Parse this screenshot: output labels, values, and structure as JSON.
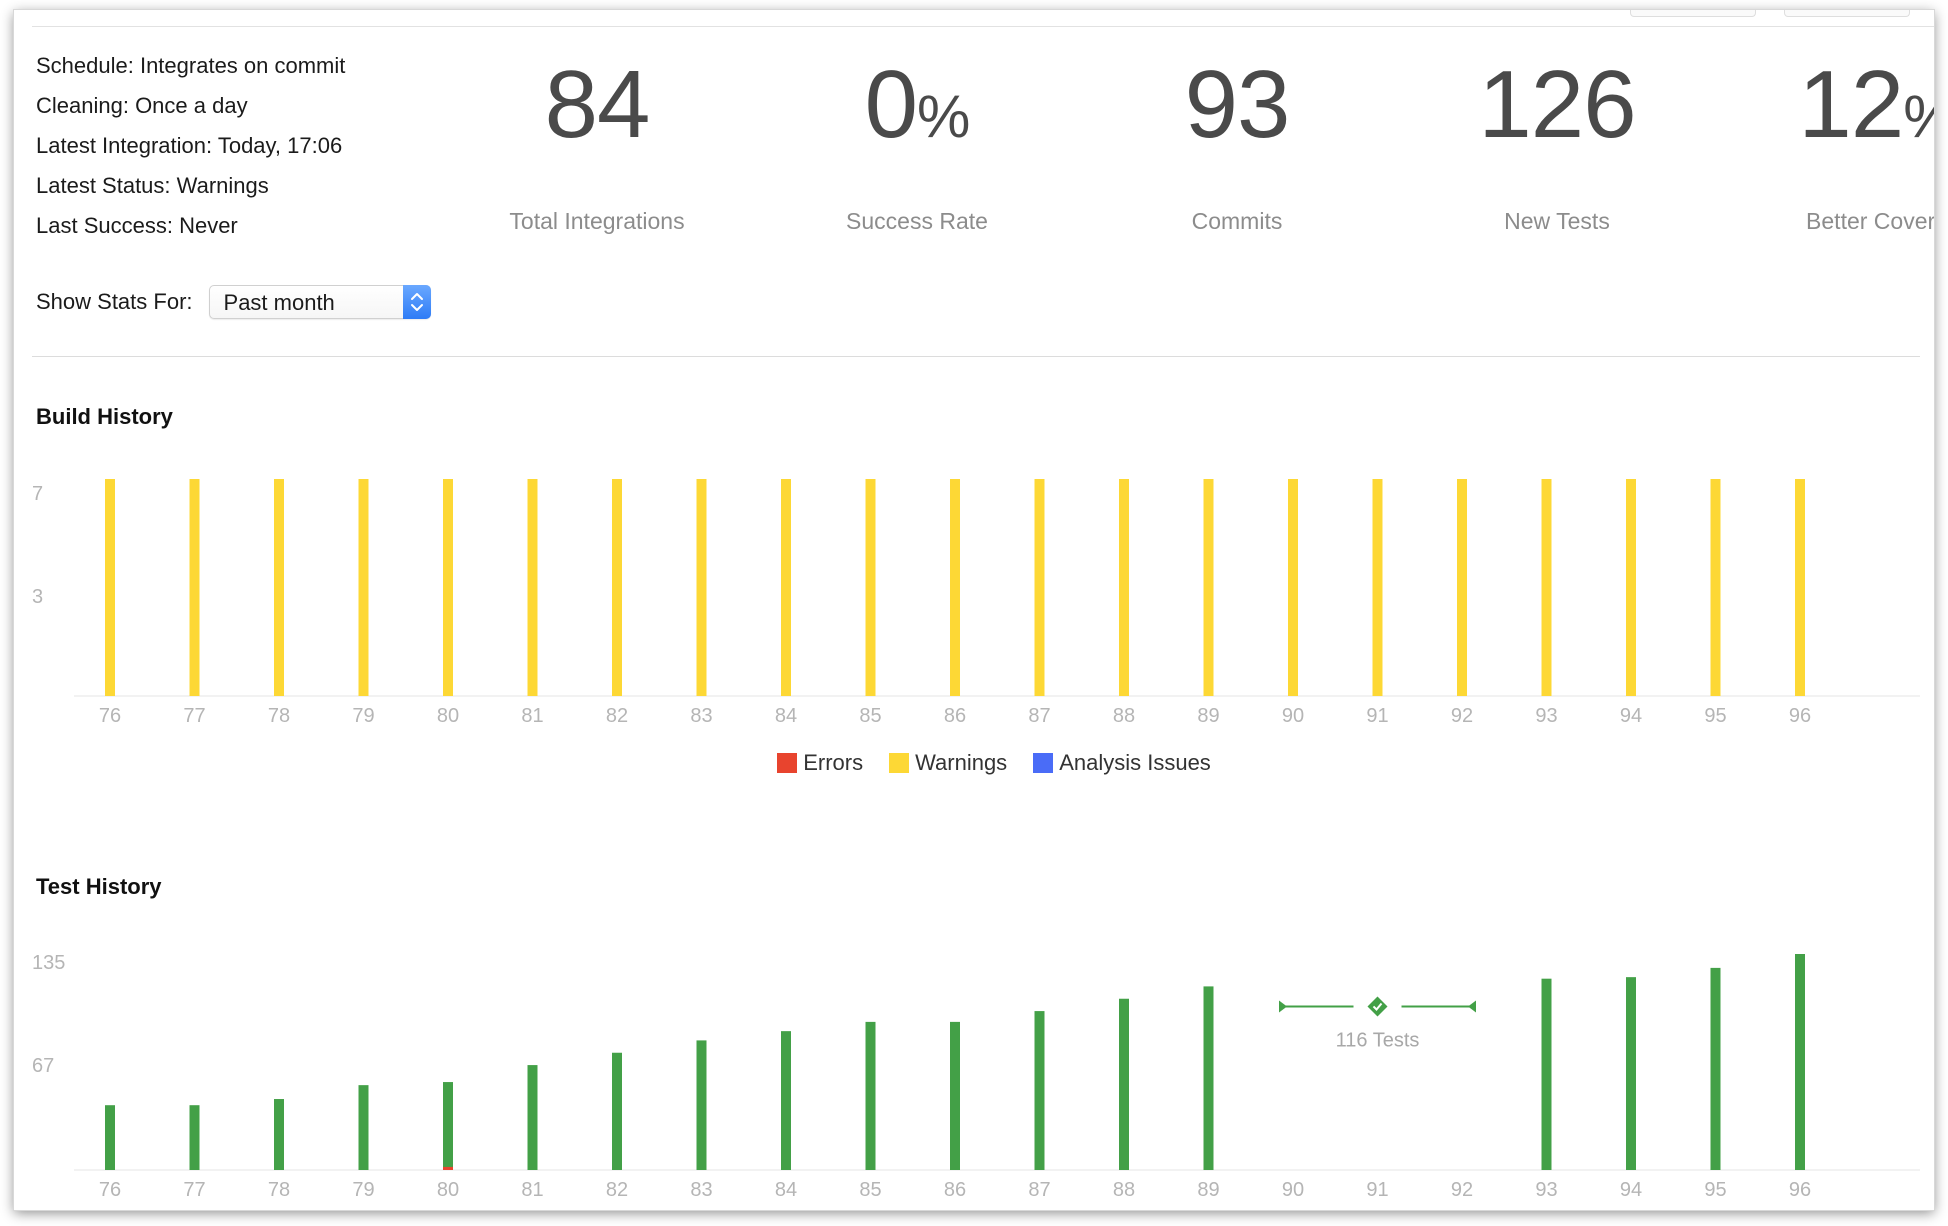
{
  "summary": {
    "schedule": "Schedule: Integrates on commit",
    "cleaning": "Cleaning: Once a day",
    "latest_integration": "Latest Integration: Today, 17:06",
    "latest_status": "Latest Status: Warnings",
    "last_success": "Last Success: Never"
  },
  "stats": [
    {
      "value": "84",
      "unit": "",
      "label": "Total Integrations"
    },
    {
      "value": "0",
      "unit": "%",
      "label": "Success Rate"
    },
    {
      "value": "93",
      "unit": "",
      "label": "Commits"
    },
    {
      "value": "126",
      "unit": "",
      "label": "New Tests"
    },
    {
      "value": "12",
      "unit": "%",
      "label": "Better Covera"
    }
  ],
  "stats_for": {
    "label": "Show Stats For:",
    "selected": "Past month"
  },
  "build_history": {
    "title": "Build History",
    "legend": [
      {
        "name": "Errors",
        "color": "#e8442e"
      },
      {
        "name": "Warnings",
        "color": "#fdd835"
      },
      {
        "name": "Analysis Issues",
        "color": "#4a6cf7"
      }
    ]
  },
  "test_history": {
    "title": "Test History",
    "gap_label": "116 Tests"
  },
  "chart_data": [
    {
      "type": "bar",
      "title": "Build History",
      "categories": [
        "76",
        "77",
        "78",
        "79",
        "80",
        "81",
        "82",
        "83",
        "84",
        "85",
        "86",
        "87",
        "88",
        "89",
        "90",
        "91",
        "92",
        "93",
        "94",
        "95",
        "96"
      ],
      "y_ticks": [
        "7",
        "3"
      ],
      "series": [
        {
          "name": "Errors",
          "color": "#e8442e",
          "values": [
            0,
            0,
            0,
            0,
            0,
            0,
            0,
            0,
            0,
            0,
            0,
            0,
            0,
            0,
            0,
            0,
            0,
            0,
            0,
            0,
            0
          ]
        },
        {
          "name": "Warnings",
          "color": "#fdd835",
          "values": [
            7,
            7,
            7,
            7,
            7,
            7,
            7,
            7,
            7,
            7,
            7,
            7,
            7,
            7,
            7,
            7,
            7,
            7,
            7,
            7,
            7
          ]
        },
        {
          "name": "Analysis Issues",
          "color": "#4a6cf7",
          "values": [
            0,
            0,
            0,
            0,
            0,
            0,
            0,
            0,
            0,
            0,
            0,
            0,
            0,
            0,
            0,
            0,
            0,
            0,
            0,
            0,
            0
          ]
        }
      ],
      "ylim": [
        0,
        7
      ],
      "legend": "bottom-center"
    },
    {
      "type": "bar",
      "title": "Test History",
      "categories": [
        "76",
        "77",
        "78",
        "79",
        "80",
        "81",
        "82",
        "83",
        "84",
        "85",
        "86",
        "87",
        "88",
        "89",
        "90",
        "91",
        "92",
        "93",
        "94",
        "95",
        "96"
      ],
      "y_ticks": [
        "135",
        "67"
      ],
      "series": [
        {
          "color": "#43a047",
          "values": [
            42,
            42,
            46,
            55,
            57,
            68,
            76,
            84,
            90,
            96,
            96,
            103,
            111,
            119,
            null,
            null,
            null,
            124,
            125,
            131,
            140
          ]
        },
        {
          "color": "#e8442e",
          "values": [
            0,
            0,
            0,
            0,
            2,
            0,
            0,
            0,
            0,
            0,
            0,
            0,
            0,
            0,
            null,
            null,
            null,
            0,
            0,
            0,
            0
          ]
        }
      ],
      "annotation": "116 Tests",
      "ylim": [
        0,
        140
      ]
    }
  ]
}
